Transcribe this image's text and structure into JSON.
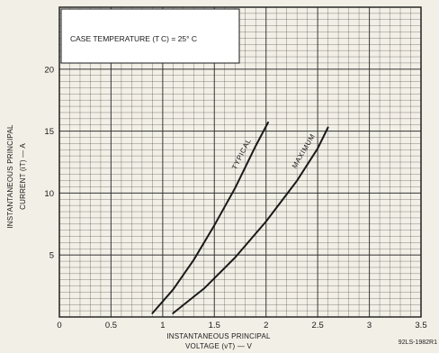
{
  "chart_data": {
    "type": "line",
    "title": "",
    "annotation": "CASE TEMPERATURE (T C) = 25° C",
    "xlabel_line1": "INSTANTANEOUS PRINCIPAL",
    "xlabel_line2": "VOLTAGE (vT) — V",
    "ylabel_line1": "INSTANTANEOUS PRINCIPAL",
    "ylabel_line2": "CURRENT (iT) — A",
    "xlim": [
      0,
      3.5
    ],
    "ylim": [
      0,
      25
    ],
    "x_ticks": [
      "0",
      "0.5",
      "1",
      "1.5",
      "2",
      "2.5",
      "3",
      "3.5"
    ],
    "y_ticks": [
      "5",
      "10",
      "15",
      "20"
    ],
    "grid": true,
    "series": [
      {
        "name": "TYPICAL",
        "points": [
          [
            0.9,
            0.3
          ],
          [
            1.1,
            2.2
          ],
          [
            1.3,
            4.6
          ],
          [
            1.5,
            7.4
          ],
          [
            1.7,
            10.4
          ],
          [
            1.9,
            13.8
          ],
          [
            2.02,
            15.7
          ]
        ]
      },
      {
        "name": "MAXIMUM",
        "points": [
          [
            1.1,
            0.3
          ],
          [
            1.4,
            2.3
          ],
          [
            1.7,
            4.8
          ],
          [
            2.0,
            7.7
          ],
          [
            2.3,
            11.0
          ],
          [
            2.5,
            13.6
          ],
          [
            2.6,
            15.3
          ]
        ]
      }
    ],
    "figure_id": "92LS-1982R1",
    "colors": {
      "paper": "#f2efe6",
      "ink": "#1a1a1a",
      "grid": "#2b2b2b"
    }
  }
}
